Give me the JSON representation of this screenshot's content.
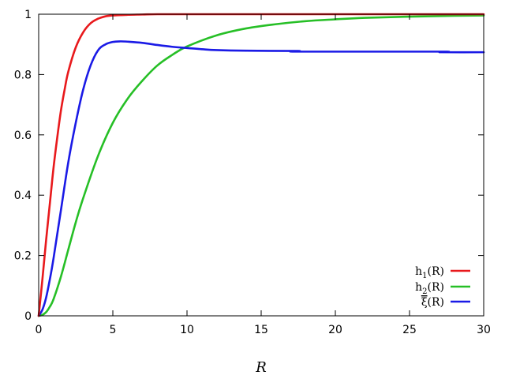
{
  "chart_data": {
    "type": "line",
    "title": "",
    "xlabel": "R",
    "ylabel": "",
    "xlim": [
      0,
      30
    ],
    "ylim": [
      0,
      1
    ],
    "x_ticks": [
      0,
      5,
      10,
      15,
      20,
      25,
      30
    ],
    "y_ticks": [
      0,
      0.2,
      0.4,
      0.6,
      0.8,
      1
    ],
    "x_tick_labels": [
      "0",
      "5",
      "10",
      "15",
      "20",
      "25",
      "30"
    ],
    "y_tick_labels": [
      "0",
      "0.2",
      "0.4",
      "0.6",
      "0.8",
      "1"
    ],
    "grid": false,
    "legend_position": "bottom-right",
    "series": [
      {
        "name": "h1(R)",
        "legend_base": "h",
        "legend_sub": "1",
        "legend_suffix": "(R)",
        "color": "#e8191c",
        "x": [
          0,
          0.25,
          0.5,
          0.75,
          1,
          1.25,
          1.5,
          1.75,
          2,
          2.5,
          3,
          3.5,
          4,
          4.5,
          5,
          6,
          7,
          8,
          10,
          12,
          15,
          20,
          25,
          30
        ],
        "y": [
          0,
          0.12,
          0.25,
          0.37,
          0.49,
          0.59,
          0.68,
          0.75,
          0.81,
          0.89,
          0.94,
          0.97,
          0.985,
          0.993,
          0.996,
          0.998,
          0.999,
          1,
          1,
          1,
          1,
          1,
          1,
          1
        ]
      },
      {
        "name": "h2(R)",
        "legend_base": "h",
        "legend_sub": "2",
        "legend_suffix": "(R)",
        "color": "#26bf26",
        "x": [
          0,
          0.25,
          0.5,
          0.75,
          1,
          1.5,
          2,
          2.5,
          3,
          4,
          5,
          6,
          7,
          8,
          9,
          10,
          12,
          14,
          16,
          18,
          20,
          22,
          25,
          28,
          30
        ],
        "y": [
          0,
          0.003,
          0.012,
          0.03,
          0.055,
          0.13,
          0.22,
          0.31,
          0.39,
          0.53,
          0.64,
          0.72,
          0.78,
          0.83,
          0.865,
          0.893,
          0.93,
          0.953,
          0.967,
          0.977,
          0.983,
          0.988,
          0.992,
          0.995,
          0.996
        ]
      },
      {
        "name": "ξ(R)",
        "legend_base": "ξ",
        "legend_overbar": true,
        "legend_sub": "",
        "legend_suffix": "(R)",
        "color": "#1a1ae6",
        "x": [
          0,
          0.25,
          0.5,
          0.75,
          1,
          1.5,
          2,
          2.5,
          3,
          3.5,
          4,
          4.5,
          5,
          5.5,
          6,
          7,
          8,
          9,
          10,
          11,
          12,
          14,
          17.5,
          17.6,
          27,
          27.1,
          30
        ],
        "y": [
          0,
          0.02,
          0.06,
          0.12,
          0.19,
          0.35,
          0.51,
          0.64,
          0.75,
          0.83,
          0.88,
          0.9,
          0.908,
          0.91,
          0.909,
          0.905,
          0.898,
          0.892,
          0.888,
          0.884,
          0.881,
          0.879,
          0.878,
          0.876,
          0.876,
          0.874,
          0.874
        ]
      }
    ]
  }
}
